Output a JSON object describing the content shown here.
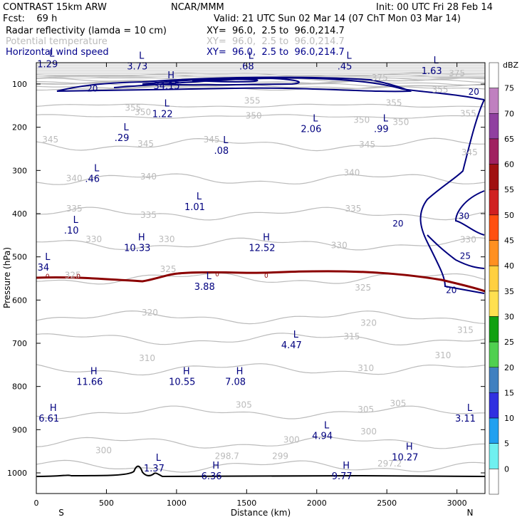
{
  "header": {
    "model": "CONTRAST 15km ARW",
    "org": "NCAR/MMM",
    "init": "Init: 00 UTC Fri 28 Feb 14",
    "fcst": "Fcst:    69 h",
    "valid": "Valid: 21 UTC Sun 02 Mar 14 (07 ChT Mon 03 Mar 14)",
    "field1_name": "Radar reflectivity (lamda = 10 cm)",
    "field1_xy": "XY=  96.0,  2.5 to  96.0,214.7",
    "field2_name": "Potential temperature",
    "field2_xy": "XY=  96.0,  2.5 to  96.0,214.7",
    "field3_name": "Horizontal wind speed",
    "field3_xy": "XY=  96.0,  2.5 to  96.0,214.7"
  },
  "colors": {
    "theta": "#bbbbbb",
    "wind": "#00007f",
    "zero_isotherm": "#8b0000",
    "terrain": "#000000"
  },
  "chart_data": {
    "type": "contour",
    "xlabel": "Distance (km)",
    "ylabel": "Pressure (hPa)",
    "xlim": [
      0,
      3200
    ],
    "ylim": [
      50,
      1050
    ],
    "y_scale": "linear, inverted",
    "x_ticks": [
      0,
      500,
      1000,
      1500,
      2000,
      2500,
      3000
    ],
    "y_ticks": [
      100,
      200,
      300,
      400,
      500,
      600,
      700,
      800,
      900,
      1000
    ],
    "x_end_labels": {
      "left": "S",
      "right": "N"
    },
    "colorbar": {
      "unit": "dBZ",
      "levels": [
        75,
        70,
        65,
        60,
        55,
        50,
        45,
        40,
        35,
        30,
        25,
        20,
        15,
        10,
        5,
        0
      ],
      "colors": [
        "#ffffff",
        "#c080c0",
        "#9040a0",
        "#a02060",
        "#a01010",
        "#d02020",
        "#ff5010",
        "#ff9020",
        "#ffd040",
        "#ffe050",
        "#10a010",
        "#50d050",
        "#4080c0",
        "#3030e0",
        "#20a0f0",
        "#70f0f0",
        "#ffffff"
      ]
    },
    "theta_contours": [
      {
        "label": "375",
        "x": 2450,
        "p": 92
      },
      {
        "label": "375",
        "x": 3000,
        "p": 82
      },
      {
        "label": "355",
        "x": 1540,
        "p": 145
      },
      {
        "label": "355",
        "x": 2550,
        "p": 150
      },
      {
        "label": "355",
        "x": 690,
        "p": 162
      },
      {
        "label": "355",
        "x": 2880,
        "p": 120
      },
      {
        "label": "355",
        "x": 3080,
        "p": 175
      },
      {
        "label": "350",
        "x": 760,
        "p": 172
      },
      {
        "label": "350",
        "x": 1550,
        "p": 180
      },
      {
        "label": "350",
        "x": 2320,
        "p": 190
      },
      {
        "label": "350",
        "x": 2600,
        "p": 195
      },
      {
        "label": "345",
        "x": 100,
        "p": 235
      },
      {
        "label": "345",
        "x": 780,
        "p": 245
      },
      {
        "label": "345",
        "x": 1250,
        "p": 235
      },
      {
        "label": "345",
        "x": 2360,
        "p": 247
      },
      {
        "label": "345",
        "x": 3090,
        "p": 265
      },
      {
        "label": "340",
        "x": 270,
        "p": 325
      },
      {
        "label": "340",
        "x": 800,
        "p": 321
      },
      {
        "label": "340",
        "x": 2250,
        "p": 312
      },
      {
        "label": "335",
        "x": 270,
        "p": 395
      },
      {
        "label": "335",
        "x": 800,
        "p": 410
      },
      {
        "label": "335",
        "x": 2260,
        "p": 395
      },
      {
        "label": "330",
        "x": 410,
        "p": 466
      },
      {
        "label": "330",
        "x": 930,
        "p": 466
      },
      {
        "label": "330",
        "x": 2160,
        "p": 480
      },
      {
        "label": "330",
        "x": 3080,
        "p": 467
      },
      {
        "label": "325",
        "x": 260,
        "p": 549
      },
      {
        "label": "325",
        "x": 940,
        "p": 535
      },
      {
        "label": "325",
        "x": 2330,
        "p": 578
      },
      {
        "label": "320",
        "x": 810,
        "p": 636
      },
      {
        "label": "320",
        "x": 2370,
        "p": 660
      },
      {
        "label": "315",
        "x": 2250,
        "p": 691
      },
      {
        "label": "315",
        "x": 3060,
        "p": 676
      },
      {
        "label": "310",
        "x": 790,
        "p": 741
      },
      {
        "label": "310",
        "x": 2350,
        "p": 764
      },
      {
        "label": "310",
        "x": 2900,
        "p": 735
      },
      {
        "label": "305",
        "x": 1480,
        "p": 849
      },
      {
        "label": "305",
        "x": 2350,
        "p": 860
      },
      {
        "label": "305",
        "x": 2580,
        "p": 846
      },
      {
        "label": "300",
        "x": 1820,
        "p": 930
      },
      {
        "label": "300",
        "x": 480,
        "p": 955
      },
      {
        "label": "300",
        "x": 2370,
        "p": 911
      },
      {
        "label": "299",
        "x": 1740,
        "p": 968
      },
      {
        "label": "298.7",
        "x": 50,
        "p": 992
      },
      {
        "label": "298.7",
        "x": 1360,
        "p": 968
      },
      {
        "label": "297.2",
        "x": 2520,
        "p": 985
      }
    ],
    "wind_contours": [
      {
        "label": "20",
        "x": 400,
        "p": 117
      },
      {
        "label": "20",
        "x": 3120,
        "p": 125
      },
      {
        "label": "20",
        "x": 2580,
        "p": 430
      },
      {
        "label": "30",
        "x": 3050,
        "p": 412
      },
      {
        "label": "25",
        "x": 3060,
        "p": 505
      },
      {
        "label": "20",
        "x": 2960,
        "p": 584
      },
      {
        "label": "0",
        "x": 80,
        "p": 550
      },
      {
        "label": "0",
        "x": 300,
        "p": 550
      },
      {
        "label": "0",
        "x": 1290,
        "p": 545
      },
      {
        "label": "0",
        "x": 1640,
        "p": 548
      }
    ],
    "extrema": [
      {
        "type": "L",
        "value": "1.29",
        "x": 80,
        "p": 50
      },
      {
        "type": "L",
        "value": "3.73",
        "x": 720,
        "p": 55
      },
      {
        "type": "L",
        "value": ".68",
        "x": 1500,
        "p": 55
      },
      {
        "type": "L",
        "value": ".45",
        "x": 2200,
        "p": 55
      },
      {
        "type": "L",
        "value": "1.63",
        "x": 2820,
        "p": 65
      },
      {
        "type": "H",
        "value": "34.15",
        "x": 930,
        "p": 100
      },
      {
        "type": "L",
        "value": "1.22",
        "x": 900,
        "p": 165
      },
      {
        "type": "L",
        "value": ".29",
        "x": 610,
        "p": 220
      },
      {
        "type": "L",
        "value": ".08",
        "x": 1320,
        "p": 250
      },
      {
        "type": "L",
        "value": "2.06",
        "x": 1960,
        "p": 200
      },
      {
        "type": "L",
        "value": ".99",
        "x": 2460,
        "p": 200
      },
      {
        "type": "L",
        "value": ".46",
        "x": 400,
        "p": 315
      },
      {
        "type": "L",
        "value": "1.01",
        "x": 1130,
        "p": 380
      },
      {
        "type": "L",
        "value": ".10",
        "x": 250,
        "p": 435
      },
      {
        "type": "H",
        "value": "10.33",
        "x": 720,
        "p": 475
      },
      {
        "type": "H",
        "value": "12.52",
        "x": 1610,
        "p": 475
      },
      {
        "type": "L",
        "value": "34",
        "x": 50,
        "p": 520
      },
      {
        "type": "L",
        "value": "3.88",
        "x": 1200,
        "p": 565
      },
      {
        "type": "L",
        "value": "4.47",
        "x": 1820,
        "p": 700
      },
      {
        "type": "H",
        "value": "11.66",
        "x": 380,
        "p": 785
      },
      {
        "type": "H",
        "value": "10.55",
        "x": 1040,
        "p": 785
      },
      {
        "type": "H",
        "value": "7.08",
        "x": 1420,
        "p": 785
      },
      {
        "type": "H",
        "value": "6.61",
        "x": 90,
        "p": 870
      },
      {
        "type": "L",
        "value": "3.11",
        "x": 3060,
        "p": 870
      },
      {
        "type": "L",
        "value": "4.94",
        "x": 2040,
        "p": 910
      },
      {
        "type": "H",
        "value": "10.27",
        "x": 2630,
        "p": 960
      },
      {
        "type": "L",
        "value": "1.37",
        "x": 840,
        "p": 985
      },
      {
        "type": "H",
        "value": "6.36",
        "x": 1250,
        "p": 1003
      },
      {
        "type": "H",
        "value": "9.77",
        "x": 2180,
        "p": 1003
      }
    ]
  }
}
